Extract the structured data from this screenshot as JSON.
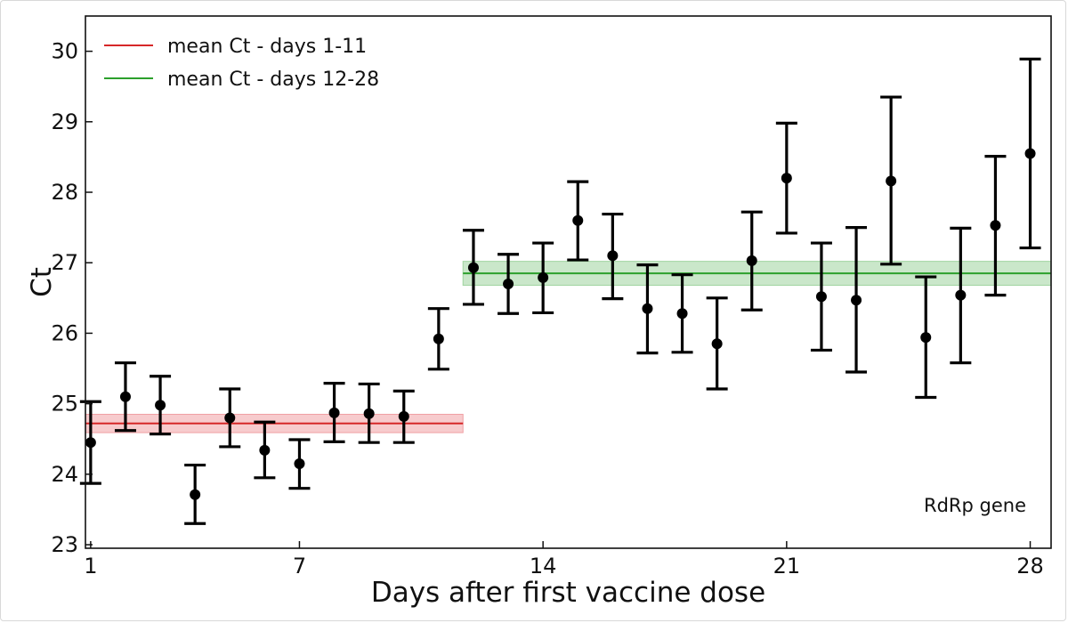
{
  "chart_data": {
    "type": "scatter",
    "title": "",
    "xlabel": "Days after first vaccine dose",
    "ylabel": "Ct",
    "xlim": [
      0.85,
      28.6
    ],
    "ylim": [
      22.95,
      30.5
    ],
    "x_ticks": [
      1,
      7,
      14,
      21,
      28
    ],
    "y_ticks": [
      23,
      24,
      25,
      26,
      27,
      28,
      29,
      30
    ],
    "grid": false,
    "legend_position": "top-left",
    "annotation": "RdRp gene",
    "points": [
      {
        "day": 1,
        "ct": 24.45,
        "low": 23.87,
        "high": 25.03
      },
      {
        "day": 2,
        "ct": 25.1,
        "low": 24.62,
        "high": 25.58
      },
      {
        "day": 3,
        "ct": 24.98,
        "low": 24.57,
        "high": 25.39
      },
      {
        "day": 4,
        "ct": 23.71,
        "low": 23.3,
        "high": 24.13
      },
      {
        "day": 5,
        "ct": 24.8,
        "low": 24.39,
        "high": 25.21
      },
      {
        "day": 6,
        "ct": 24.34,
        "low": 23.95,
        "high": 24.74
      },
      {
        "day": 7,
        "ct": 24.15,
        "low": 23.8,
        "high": 24.49
      },
      {
        "day": 8,
        "ct": 24.87,
        "low": 24.46,
        "high": 25.29
      },
      {
        "day": 9,
        "ct": 24.86,
        "low": 24.45,
        "high": 25.28
      },
      {
        "day": 10,
        "ct": 24.82,
        "low": 24.45,
        "high": 25.18
      },
      {
        "day": 11,
        "ct": 25.92,
        "low": 25.49,
        "high": 26.35
      },
      {
        "day": 12,
        "ct": 26.93,
        "low": 26.41,
        "high": 27.46
      },
      {
        "day": 13,
        "ct": 26.7,
        "low": 26.28,
        "high": 27.12
      },
      {
        "day": 14,
        "ct": 26.79,
        "low": 26.29,
        "high": 27.28
      },
      {
        "day": 15,
        "ct": 27.6,
        "low": 27.04,
        "high": 28.15
      },
      {
        "day": 16,
        "ct": 27.1,
        "low": 26.49,
        "high": 27.69
      },
      {
        "day": 17,
        "ct": 26.35,
        "low": 25.72,
        "high": 26.97
      },
      {
        "day": 18,
        "ct": 26.28,
        "low": 25.73,
        "high": 26.83
      },
      {
        "day": 19,
        "ct": 25.85,
        "low": 25.21,
        "high": 26.5
      },
      {
        "day": 20,
        "ct": 27.03,
        "low": 26.33,
        "high": 27.72
      },
      {
        "day": 21,
        "ct": 28.2,
        "low": 27.42,
        "high": 28.98
      },
      {
        "day": 22,
        "ct": 26.52,
        "low": 25.76,
        "high": 27.28
      },
      {
        "day": 23,
        "ct": 26.47,
        "low": 25.45,
        "high": 27.5
      },
      {
        "day": 24,
        "ct": 28.16,
        "low": 26.98,
        "high": 29.35
      },
      {
        "day": 25,
        "ct": 25.94,
        "low": 25.09,
        "high": 26.8
      },
      {
        "day": 26,
        "ct": 26.54,
        "low": 25.58,
        "high": 27.49
      },
      {
        "day": 27,
        "ct": 27.53,
        "low": 26.54,
        "high": 28.51
      },
      {
        "day": 28,
        "ct": 28.55,
        "low": 27.21,
        "high": 29.89
      }
    ],
    "reference_lines": [
      {
        "name": "mean Ct - days 1-11",
        "color": "#d62728",
        "band_color": "#f0a0a4",
        "x_start": 0.85,
        "x_end": 11.7,
        "value": 24.72,
        "band_low": 24.59,
        "band_high": 24.85
      },
      {
        "name": "mean Ct - days 12-28",
        "color": "#2ca02c",
        "band_color": "#9fd49f",
        "x_start": 11.7,
        "x_end": 28.6,
        "value": 26.85,
        "band_low": 26.68,
        "band_high": 27.02
      }
    ]
  }
}
